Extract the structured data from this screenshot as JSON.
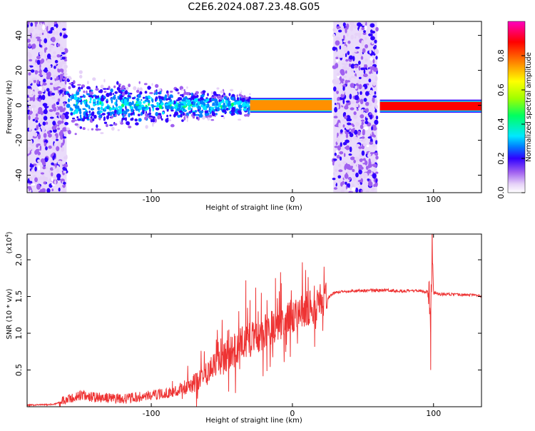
{
  "title": "C2E6.2024.087.23.48.G05",
  "chart_data": [
    {
      "type": "heatmap",
      "xlabel": "Height of straight line (km)",
      "ylabel": "Frequency (Hz)",
      "xlim": [
        -188,
        134
      ],
      "ylim": [
        -50,
        48
      ],
      "xticks": [
        -100,
        0,
        100
      ],
      "yticks": [
        -40,
        -20,
        0,
        20,
        40
      ],
      "colorbar": {
        "label": "Normalized spectral amplitude",
        "range": [
          0,
          1
        ],
        "ticks": [
          "0.0",
          "0.2",
          "0.4",
          "0.6",
          "0.8"
        ],
        "colors": [
          "#ffffff",
          "#e6d2f8",
          "#a060f0",
          "#3000ff",
          "#0080ff",
          "#00e8ff",
          "#00ff60",
          "#a0ff00",
          "#ffff00",
          "#ff9000",
          "#ff0000",
          "#ff00c0"
        ]
      },
      "regions": [
        {
          "x": [
            -188,
            -160
          ],
          "f": [
            -50,
            48
          ],
          "amp": 0.25,
          "kind": "broadband"
        },
        {
          "x": [
            -160,
            -30
          ],
          "f": [
            -12,
            10
          ],
          "amp": 0.45,
          "kind": "noisy-band"
        },
        {
          "x": [
            -30,
            28
          ],
          "f": [
            -3,
            3
          ],
          "amp": 0.8,
          "kind": "narrow-line"
        },
        {
          "x": [
            29,
            60
          ],
          "f": [
            -50,
            48
          ],
          "amp": 0.25,
          "kind": "broadband"
        },
        {
          "x": [
            62,
            134
          ],
          "f": [
            -3,
            2
          ],
          "amp": 0.95,
          "kind": "narrow-line"
        }
      ]
    },
    {
      "type": "line",
      "xlabel": "Height of straight line (km)",
      "ylabel": "SNR (10 * v/v)",
      "yscale_label": "(x10",
      "yscale_exp": "4",
      "yscale_close": ")",
      "xlim": [
        -188,
        134
      ],
      "ylim": [
        0,
        2.35
      ],
      "xticks": [
        -100,
        0,
        100
      ],
      "yticks": [
        0.5,
        1.0,
        1.5,
        2.0
      ],
      "ytick_labels": [
        "0.5",
        "1.0",
        "1.5",
        "2.0"
      ],
      "color": "#ee3333",
      "x": [
        -188,
        -170,
        -160,
        -150,
        -140,
        -130,
        -120,
        -110,
        -100,
        -90,
        -80,
        -70,
        -60,
        -50,
        -40,
        -35,
        -30,
        -25,
        -20,
        -15,
        -10,
        -5,
        0,
        5,
        10,
        15,
        20,
        25,
        30,
        40,
        50,
        60,
        70,
        80,
        90,
        95,
        97,
        98,
        99,
        100,
        105,
        110,
        120,
        134
      ],
      "y": [
        0.02,
        0.03,
        0.08,
        0.15,
        0.12,
        0.11,
        0.1,
        0.12,
        0.15,
        0.17,
        0.22,
        0.3,
        0.45,
        0.6,
        0.75,
        0.85,
        0.9,
        0.95,
        1.0,
        1.05,
        1.1,
        1.15,
        1.2,
        1.25,
        1.3,
        1.35,
        1.4,
        1.48,
        1.55,
        1.57,
        1.58,
        1.58,
        1.58,
        1.57,
        1.58,
        1.56,
        1.6,
        1.0,
        2.3,
        1.55,
        1.53,
        1.53,
        1.52,
        1.51
      ],
      "spikes": [
        [
          -85,
          0.35
        ],
        [
          -55,
          0.72
        ],
        [
          -45,
          1.05
        ],
        [
          -38,
          1.3
        ],
        [
          -33,
          1.72
        ],
        [
          -30,
          1.45
        ],
        [
          -26,
          1.62
        ],
        [
          -22,
          1.55
        ],
        [
          -18,
          1.45
        ],
        [
          -12,
          1.75
        ],
        [
          -8,
          1.25
        ],
        [
          -3,
          1.3
        ],
        [
          5,
          1.4
        ],
        [
          10,
          1.5
        ],
        [
          98,
          0.5
        ]
      ]
    }
  ]
}
